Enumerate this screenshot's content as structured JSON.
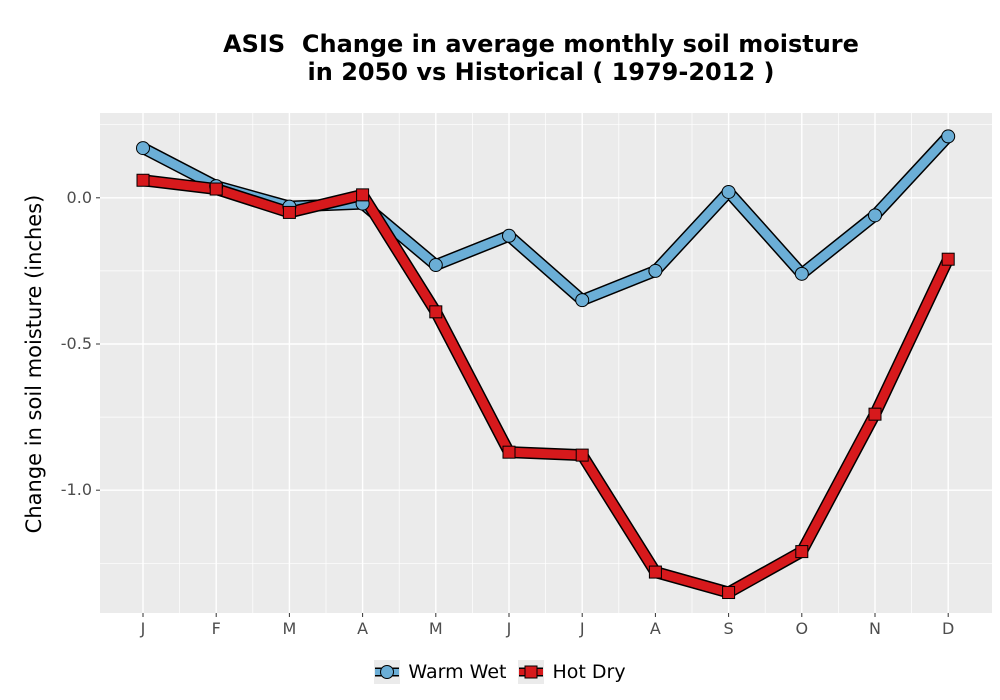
{
  "chart_data": {
    "type": "line",
    "title_lines": [
      "ASIS  Change in average monthly soil moisture",
      "in 2050 vs Historical ( 1979-2012 )"
    ],
    "xlabel": "",
    "ylabel": "Change in soil moisture (inches)",
    "categories": [
      "J",
      "F",
      "M",
      "A",
      "M",
      "J",
      "J",
      "A",
      "S",
      "O",
      "N",
      "D"
    ],
    "yticks": [
      {
        "value": 0.0,
        "label": "0.0"
      },
      {
        "value": -0.5,
        "label": "-0.5"
      },
      {
        "value": -1.0,
        "label": "-1.0"
      }
    ],
    "ylim": [
      -1.42,
      0.29
    ],
    "grid": true,
    "legend_position": "bottom",
    "series": [
      {
        "name": "Warm Wet",
        "color": "#6baed6",
        "marker": "circle",
        "values": [
          0.17,
          0.04,
          -0.03,
          -0.02,
          -0.23,
          -0.13,
          -0.35,
          -0.25,
          0.02,
          -0.26,
          -0.06,
          0.21
        ]
      },
      {
        "name": "Hot Dry",
        "color": "#d7191c",
        "marker": "square",
        "values": [
          0.06,
          0.03,
          -0.05,
          0.01,
          -0.39,
          -0.87,
          -0.88,
          -1.28,
          -1.35,
          -1.21,
          -0.74,
          -0.21
        ]
      }
    ]
  }
}
